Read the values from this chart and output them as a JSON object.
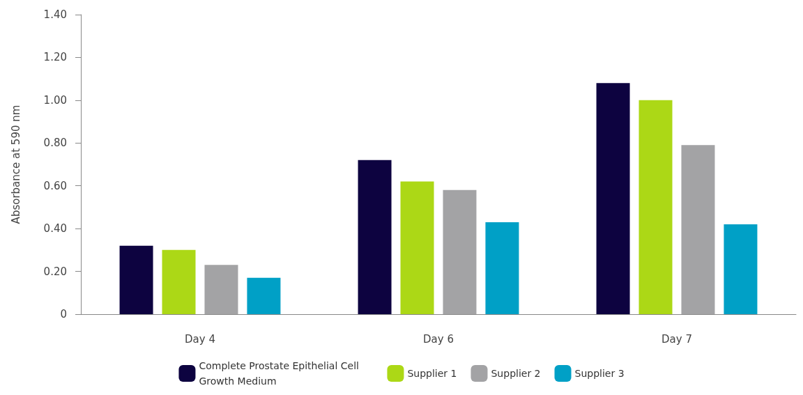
{
  "chart_data": {
    "type": "bar",
    "ylabel": "Absorbance at 590 nm",
    "categories": [
      "Day 4",
      "Day 6",
      "Day 7"
    ],
    "series": [
      {
        "name": "Complete Prostate Epithelial Cell Growth Medium",
        "color": "#0d0340",
        "values": [
          0.32,
          0.72,
          1.08
        ]
      },
      {
        "name": "Supplier 1",
        "color": "#acd816",
        "values": [
          0.3,
          0.62,
          1.0
        ]
      },
      {
        "name": "Supplier 2",
        "color": "#a3a3a5",
        "values": [
          0.23,
          0.58,
          0.79
        ]
      },
      {
        "name": "Supplier 3",
        "color": "#00a0c6",
        "values": [
          0.17,
          0.43,
          0.42
        ]
      }
    ],
    "ylim": [
      0,
      1.4
    ],
    "yticks": [
      0,
      {
        "value": 0.2,
        "label": "0.20"
      },
      {
        "value": 0.4,
        "label": "0.40"
      },
      {
        "value": 0.6,
        "label": "0.60"
      },
      {
        "value": 0.8,
        "label": "0.80"
      },
      {
        "value": 1.0,
        "label": "1.00"
      },
      {
        "value": 1.2,
        "label": "1.20"
      },
      {
        "value": 1.4,
        "label": "1.40"
      }
    ],
    "grid": false,
    "legend": "bottom"
  }
}
